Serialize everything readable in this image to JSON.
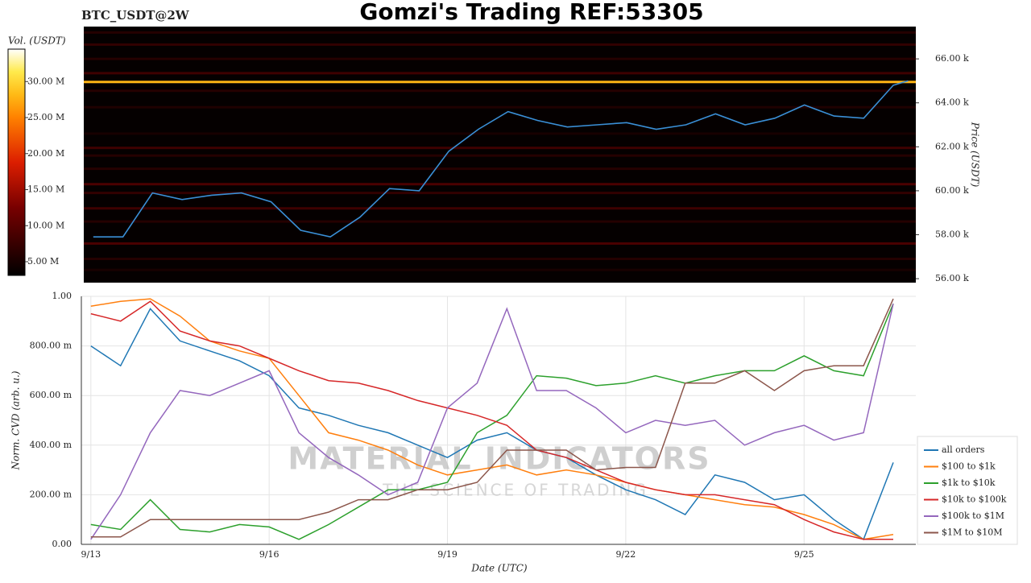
{
  "chart_data": [
    {
      "type": "heatmap",
      "title": "Gomzi's Trading REF:53305",
      "symbol": "BTC_USDT@2W",
      "ylabel": "Price (USDT)",
      "xlim": [
        12.84,
        26.88
      ],
      "ylim": [
        55820,
        67470
      ],
      "yticks": [
        {
          "value": 56000,
          "label": "56.00 k"
        },
        {
          "value": 58000,
          "label": "58.00 k"
        },
        {
          "value": 60000,
          "label": "60.00 k"
        },
        {
          "value": 62000,
          "label": "62.00 k"
        },
        {
          "value": 64000,
          "label": "64.00 k"
        },
        {
          "value": 66000,
          "label": "66.00 k"
        }
      ],
      "colorbar": {
        "label": "Vol. (USDT)",
        "vlim": [
          3100000,
          34500000
        ],
        "ticks": [
          {
            "value": 5000000,
            "label": "5.00 M"
          },
          {
            "value": 10000000,
            "label": "10.00 M"
          },
          {
            "value": 15000000,
            "label": "15.00 M"
          },
          {
            "value": 20000000,
            "label": "20.00 M"
          },
          {
            "value": 25000000,
            "label": "25.00 M"
          },
          {
            "value": 30000000,
            "label": "30.00 M"
          }
        ]
      },
      "levels": [
        {
          "price": 67200,
          "volume": 6000000
        },
        {
          "price": 66650,
          "volume": 7000000
        },
        {
          "price": 66000,
          "volume": 6000000
        },
        {
          "price": 65350,
          "volume": 8000000
        },
        {
          "price": 64950,
          "volume": 28000000
        },
        {
          "price": 64550,
          "volume": 6000000
        },
        {
          "price": 63800,
          "volume": 5500000
        },
        {
          "price": 62600,
          "volume": 5000000
        },
        {
          "price": 61950,
          "volume": 8000000
        },
        {
          "price": 61600,
          "volume": 6000000
        },
        {
          "price": 61000,
          "volume": 6000000
        },
        {
          "price": 60300,
          "volume": 9000000
        },
        {
          "price": 59900,
          "volume": 7000000
        },
        {
          "price": 59200,
          "volume": 8000000
        },
        {
          "price": 58600,
          "volume": 6000000
        },
        {
          "price": 57600,
          "volume": 9000000
        },
        {
          "price": 56900,
          "volume": 6000000
        },
        {
          "price": 56400,
          "volume": 5000000
        }
      ],
      "price": {
        "color": "#3a8fd6",
        "x": [
          13.0,
          13.5,
          14.0,
          14.5,
          15.0,
          15.5,
          16.0,
          16.5,
          17.0,
          17.5,
          18.0,
          18.5,
          19.0,
          19.5,
          20.0,
          20.5,
          21.0,
          21.5,
          22.0,
          22.5,
          23.0,
          23.5,
          24.0,
          24.5,
          25.0,
          25.5,
          26.0,
          26.5,
          26.75
        ],
        "values": [
          57900,
          57900,
          59900,
          59600,
          59800,
          59900,
          59500,
          58200,
          57900,
          58800,
          60100,
          60000,
          61800,
          62800,
          63600,
          63200,
          62900,
          63000,
          63100,
          62800,
          63000,
          63500,
          63000,
          63300,
          63900,
          63400,
          63300,
          64800,
          65000
        ]
      }
    },
    {
      "type": "line",
      "ylabel": "Norm. CVD (arb. u.)",
      "xlabel": "Date (UTC)",
      "watermark": "MATERIAL INDICATORS",
      "watermark_sub": "THE SCIENCE OF TRADING",
      "xlim": [
        12.84,
        26.88
      ],
      "ylim": [
        0,
        1
      ],
      "xticks": [
        {
          "value": 13,
          "label": "9/13"
        },
        {
          "value": 16,
          "label": "9/16"
        },
        {
          "value": 19,
          "label": "9/19"
        },
        {
          "value": 22,
          "label": "9/22"
        },
        {
          "value": 25,
          "label": "9/25"
        }
      ],
      "yticks": [
        {
          "value": 0,
          "label": "0.00"
        },
        {
          "value": 0.2,
          "label": "200.00 m"
        },
        {
          "value": 0.4,
          "label": "400.00 m"
        },
        {
          "value": 0.6,
          "label": "600.00 m"
        },
        {
          "value": 0.8,
          "label": "800.00 m"
        },
        {
          "value": 1,
          "label": "1.00"
        }
      ],
      "grid": true,
      "legend": "lower right",
      "x": [
        13.0,
        13.5,
        14.0,
        14.5,
        15.0,
        15.5,
        16.0,
        16.5,
        17.0,
        17.5,
        18.0,
        18.5,
        19.0,
        19.5,
        20.0,
        20.5,
        21.0,
        21.5,
        22.0,
        22.5,
        23.0,
        23.5,
        24.0,
        24.5,
        25.0,
        25.5,
        26.0,
        26.5
      ],
      "series": [
        {
          "name": "all orders",
          "color": "#1f77b4",
          "values": [
            0.8,
            0.72,
            0.95,
            0.82,
            0.78,
            0.74,
            0.68,
            0.55,
            0.52,
            0.48,
            0.45,
            0.4,
            0.35,
            0.42,
            0.45,
            0.38,
            0.35,
            0.28,
            0.22,
            0.18,
            0.12,
            0.28,
            0.25,
            0.18,
            0.2,
            0.1,
            0.02,
            0.33
          ]
        },
        {
          "name": "$100 to $1k",
          "color": "#ff7f0e",
          "values": [
            0.96,
            0.98,
            0.99,
            0.92,
            0.82,
            0.78,
            0.75,
            0.6,
            0.45,
            0.42,
            0.38,
            0.32,
            0.28,
            0.3,
            0.32,
            0.28,
            0.3,
            0.28,
            0.25,
            0.22,
            0.2,
            0.18,
            0.16,
            0.15,
            0.12,
            0.08,
            0.02,
            0.04
          ]
        },
        {
          "name": "$1k to $10k",
          "color": "#2ca02c",
          "values": [
            0.08,
            0.06,
            0.18,
            0.06,
            0.05,
            0.08,
            0.07,
            0.02,
            0.08,
            0.15,
            0.22,
            0.22,
            0.25,
            0.45,
            0.52,
            0.68,
            0.67,
            0.64,
            0.65,
            0.68,
            0.65,
            0.68,
            0.7,
            0.7,
            0.76,
            0.7,
            0.68,
            0.97
          ]
        },
        {
          "name": "$10k to $100k",
          "color": "#d62728",
          "values": [
            0.93,
            0.9,
            0.98,
            0.86,
            0.82,
            0.8,
            0.75,
            0.7,
            0.66,
            0.65,
            0.62,
            0.58,
            0.55,
            0.52,
            0.48,
            0.38,
            0.35,
            0.3,
            0.25,
            0.22,
            0.2,
            0.2,
            0.18,
            0.16,
            0.1,
            0.05,
            0.02,
            0.02
          ]
        },
        {
          "name": "$100k to $1M",
          "color": "#9467bd",
          "values": [
            0.02,
            0.2,
            0.45,
            0.62,
            0.6,
            0.65,
            0.7,
            0.45,
            0.35,
            0.28,
            0.2,
            0.25,
            0.55,
            0.65,
            0.95,
            0.62,
            0.62,
            0.55,
            0.45,
            0.5,
            0.48,
            0.5,
            0.4,
            0.45,
            0.48,
            0.42,
            0.45,
            0.97
          ]
        },
        {
          "name": "$1M to $10M",
          "color": "#8c564b",
          "values": [
            0.03,
            0.03,
            0.1,
            0.1,
            0.1,
            0.1,
            0.1,
            0.1,
            0.13,
            0.18,
            0.18,
            0.22,
            0.22,
            0.25,
            0.38,
            0.38,
            0.38,
            0.3,
            0.31,
            0.31,
            0.65,
            0.65,
            0.7,
            0.62,
            0.7,
            0.72,
            0.72,
            0.99
          ]
        }
      ]
    }
  ]
}
